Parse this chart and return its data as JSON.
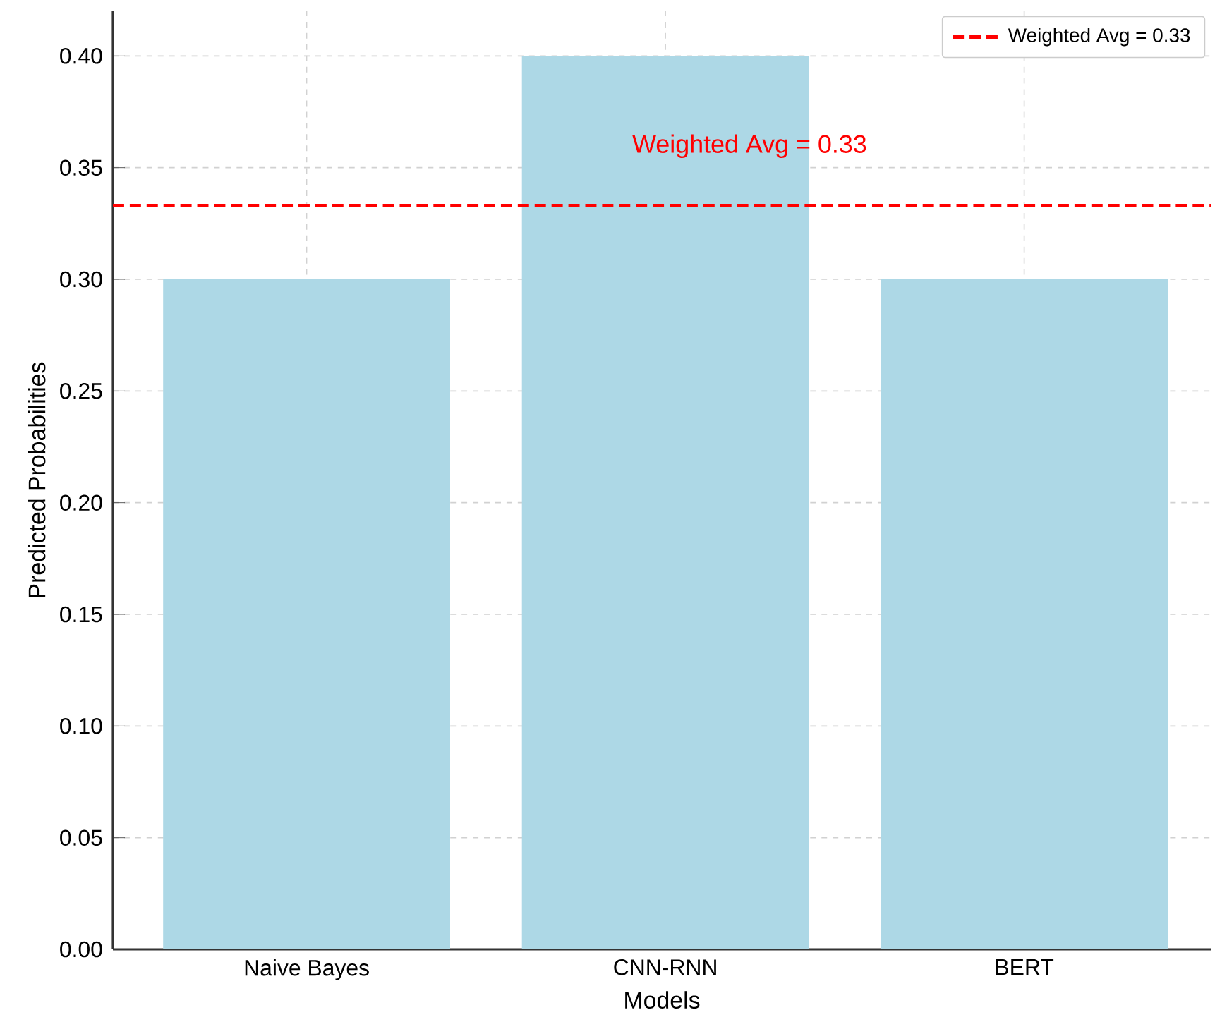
{
  "chart_data": {
    "type": "bar",
    "xlabel": "Models",
    "ylabel": "Predicted Probabilities",
    "categories": [
      "Naive Bayes",
      "CNN-RNN",
      "BERT"
    ],
    "values": [
      0.3,
      0.4,
      0.3
    ],
    "color": "#add8e6",
    "ylim": [
      0,
      0.42
    ],
    "yticks": [
      {
        "value": 0,
        "label": "0.00"
      },
      {
        "value": 0.05,
        "label": "0.05"
      },
      {
        "value": 0.1,
        "label": "0.10"
      },
      {
        "value": 0.15,
        "label": "0.15"
      },
      {
        "value": 0.2,
        "label": "0.20"
      },
      {
        "value": 0.25,
        "label": "0.25"
      },
      {
        "value": 0.3,
        "label": "0.30"
      },
      {
        "value": 0.35,
        "label": "0.35"
      },
      {
        "value": 0.4,
        "label": "0.40"
      }
    ],
    "ref_lines": [
      {
        "axis": "y",
        "value": 0.333,
        "label": "Weighted Avg = 0.33",
        "color": "#ff0000",
        "line_style": "dashed"
      }
    ],
    "annotations": [
      "Weighted Avg = 0.33"
    ],
    "grid": true,
    "legend": "top right"
  }
}
